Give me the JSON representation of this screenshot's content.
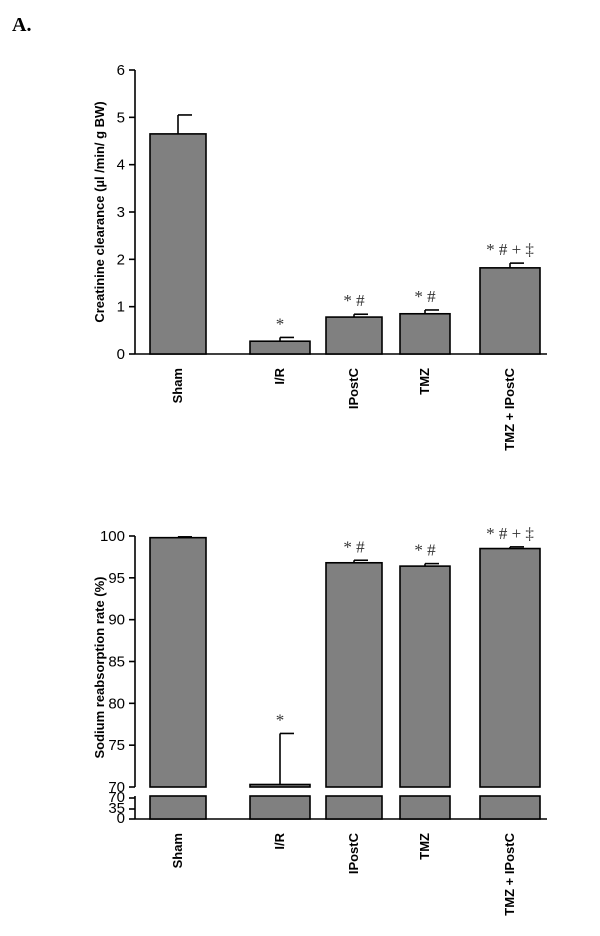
{
  "panel_label": "A.",
  "bar_color": "#808080",
  "chart_data": [
    {
      "type": "bar",
      "categories": [
        "Sham",
        "I/R",
        "IPostC",
        "TMZ",
        "TMZ + IPostC"
      ],
      "values": [
        4.65,
        0.27,
        0.78,
        0.85,
        1.82
      ],
      "errors": [
        0.4,
        0.08,
        0.06,
        0.08,
        0.1
      ],
      "significance": [
        "",
        "*",
        "* #",
        "* #",
        "* # + ‡"
      ],
      "ylabel": "Creatinine clearance (µl /min/ g BW)",
      "ylim": [
        0,
        6
      ],
      "yticks": [
        "0",
        "1",
        "2",
        "3",
        "4",
        "5",
        "6"
      ]
    },
    {
      "type": "bar",
      "broken_axis": true,
      "categories": [
        "Sham",
        "I/R",
        "IPostC",
        "TMZ",
        "TMZ + IPostC"
      ],
      "values": [
        99.8,
        70.3,
        96.8,
        96.4,
        98.5
      ],
      "errors": [
        0.1,
        6.1,
        0.3,
        0.3,
        0.2
      ],
      "significance": [
        "",
        "*",
        "* #",
        "* #",
        "* # + ‡"
      ],
      "ylabel": "Sodium reabsorption rate (%)",
      "ylim": [
        70,
        100
      ],
      "yticks": [
        "70",
        "75",
        "80",
        "85",
        "90",
        "95",
        "100"
      ],
      "lower_segment_ticks": [
        "0",
        "35",
        "70"
      ]
    }
  ]
}
